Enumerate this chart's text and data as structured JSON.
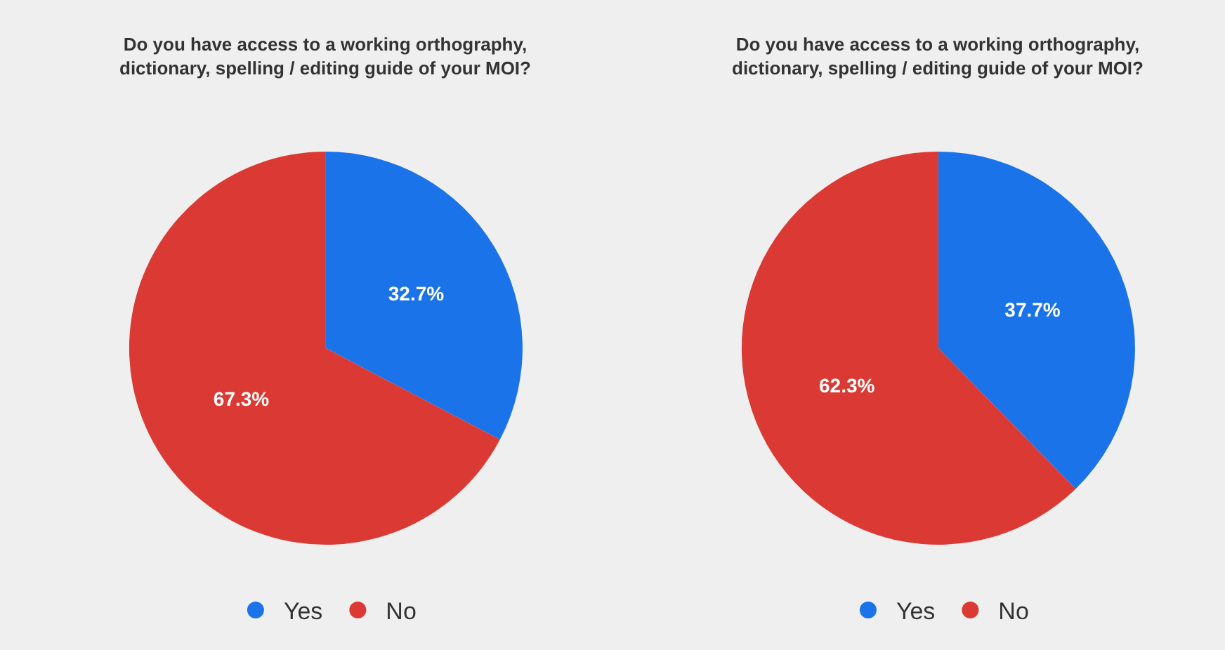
{
  "chart_data": [
    {
      "type": "pie",
      "title": "Do you have access to a working orthography,\ndictionary, spelling / editing guide of your MOI?",
      "categories": [
        "Yes",
        "No"
      ],
      "values": [
        32.7,
        67.3
      ],
      "colors": [
        "#1a73e8",
        "#db3a34"
      ],
      "value_labels": [
        "32.7%",
        "67.3%"
      ],
      "legend": "bottom"
    },
    {
      "type": "pie",
      "title": "Do you have access to a working orthography,\ndictionary, spelling / editing guide of your MOI?",
      "categories": [
        "Yes",
        "No"
      ],
      "values": [
        37.7,
        62.3
      ],
      "colors": [
        "#1a73e8",
        "#db3a34"
      ],
      "value_labels": [
        "37.7%",
        "62.3%"
      ],
      "legend": "bottom"
    }
  ]
}
